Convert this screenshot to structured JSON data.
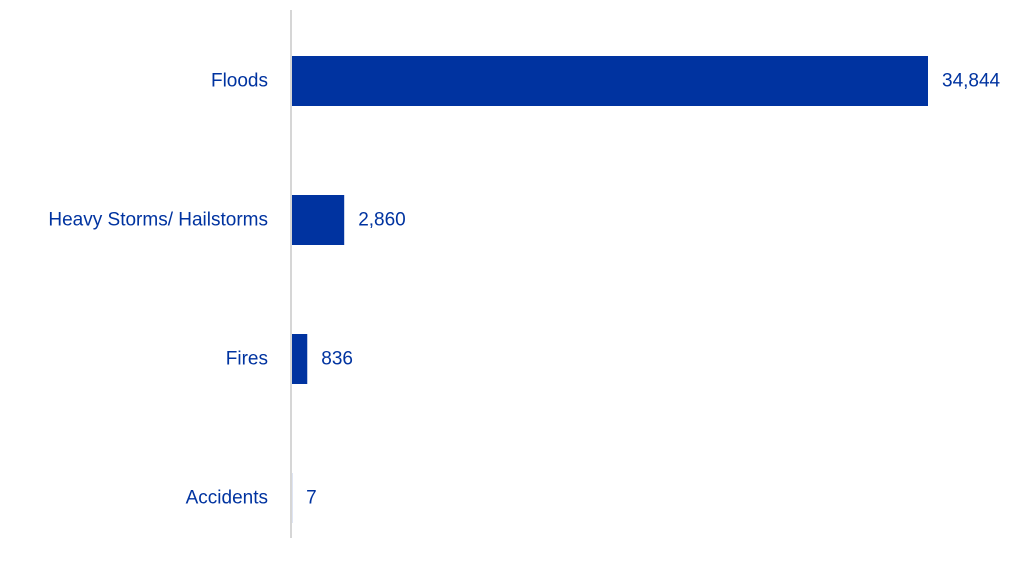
{
  "chart_data": {
    "type": "bar",
    "orientation": "horizontal",
    "title": "",
    "xlabel": "",
    "ylabel": "",
    "categories": [
      "Floods",
      "Heavy Storms/ Hailstorms",
      "Fires",
      "Accidents"
    ],
    "values": [
      34844,
      2860,
      836,
      7
    ],
    "value_labels": [
      "34,844",
      "2,860",
      "836",
      "7"
    ],
    "xlim": [
      0,
      34844
    ],
    "grid": false,
    "legend": "none",
    "colors": {
      "bar": "#0033a0",
      "text": "#0033a0",
      "axis": "#c8c8c8"
    }
  }
}
